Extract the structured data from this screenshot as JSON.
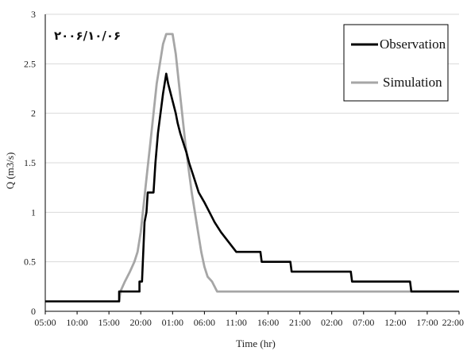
{
  "chart_data": {
    "type": "line",
    "title": "",
    "annotation": "۲۰۰۶/۱۰/۰۶",
    "xlabel": "Time  (hr)",
    "ylabel": "Q  (m3/s)",
    "ylim": [
      0,
      3
    ],
    "yticks": [
      "0",
      "0.5",
      "1",
      "1.5",
      "2",
      "2.5",
      "3"
    ],
    "x_ticks": [
      "05:00",
      "10:00",
      "15:00",
      "20:00",
      "01:00",
      "06:00",
      "11:00",
      "16:00",
      "21:00",
      "02:00",
      "07:00",
      "12:00",
      "17:00",
      "22:00"
    ],
    "x_range_hours": [
      0,
      65
    ],
    "x_unit": "hours after 05:00",
    "grid": "horizontal",
    "legend_position": "top-right",
    "series": [
      {
        "name": "Observation",
        "color": "#000000",
        "points": [
          [
            0,
            0.1
          ],
          [
            11.6,
            0.1
          ],
          [
            11.6,
            0.2
          ],
          [
            14.8,
            0.2
          ],
          [
            14.8,
            0.3
          ],
          [
            15.2,
            0.3
          ],
          [
            15.4,
            0.6
          ],
          [
            15.6,
            0.9
          ],
          [
            15.9,
            1.0
          ],
          [
            16.1,
            1.2
          ],
          [
            17.0,
            1.2
          ],
          [
            17.3,
            1.5
          ],
          [
            17.7,
            1.8
          ],
          [
            18.1,
            2.0
          ],
          [
            18.5,
            2.2
          ],
          [
            19.0,
            2.4
          ],
          [
            19.3,
            2.3
          ],
          [
            19.7,
            2.2
          ],
          [
            20.1,
            2.1
          ],
          [
            20.5,
            2.0
          ],
          [
            20.8,
            1.9
          ],
          [
            21.2,
            1.8
          ],
          [
            21.7,
            1.7
          ],
          [
            22.2,
            1.6
          ],
          [
            22.6,
            1.5
          ],
          [
            23.1,
            1.4
          ],
          [
            23.6,
            1.3
          ],
          [
            24.1,
            1.2
          ],
          [
            25.0,
            1.1
          ],
          [
            25.8,
            1.0
          ],
          [
            26.6,
            0.9
          ],
          [
            27.6,
            0.8
          ],
          [
            28.8,
            0.7
          ],
          [
            30.0,
            0.6
          ],
          [
            33.8,
            0.6
          ],
          [
            34.0,
            0.5
          ],
          [
            38.5,
            0.5
          ],
          [
            38.7,
            0.4
          ],
          [
            48.0,
            0.4
          ],
          [
            48.2,
            0.3
          ],
          [
            57.3,
            0.3
          ],
          [
            57.5,
            0.2
          ],
          [
            65.0,
            0.2
          ]
        ]
      },
      {
        "name": "Simulation",
        "color": "#a6a6a6",
        "points": [
          [
            11.6,
            0.1
          ],
          [
            11.8,
            0.2
          ],
          [
            12.5,
            0.3
          ],
          [
            13.3,
            0.4
          ],
          [
            14.0,
            0.5
          ],
          [
            14.5,
            0.6
          ],
          [
            15.0,
            0.8
          ],
          [
            15.5,
            1.1
          ],
          [
            16.0,
            1.4
          ],
          [
            16.5,
            1.7
          ],
          [
            17.0,
            2.0
          ],
          [
            17.5,
            2.3
          ],
          [
            18.0,
            2.5
          ],
          [
            18.5,
            2.7
          ],
          [
            19.0,
            2.8
          ],
          [
            20.0,
            2.8
          ],
          [
            20.5,
            2.6
          ],
          [
            21.0,
            2.3
          ],
          [
            21.5,
            2.0
          ],
          [
            22.0,
            1.7
          ],
          [
            22.5,
            1.45
          ],
          [
            23.0,
            1.2
          ],
          [
            23.5,
            1.0
          ],
          [
            24.0,
            0.8
          ],
          [
            24.5,
            0.6
          ],
          [
            25.0,
            0.45
          ],
          [
            25.5,
            0.35
          ],
          [
            26.2,
            0.3
          ],
          [
            27.0,
            0.2
          ],
          [
            65.0,
            0.2
          ]
        ]
      }
    ]
  }
}
